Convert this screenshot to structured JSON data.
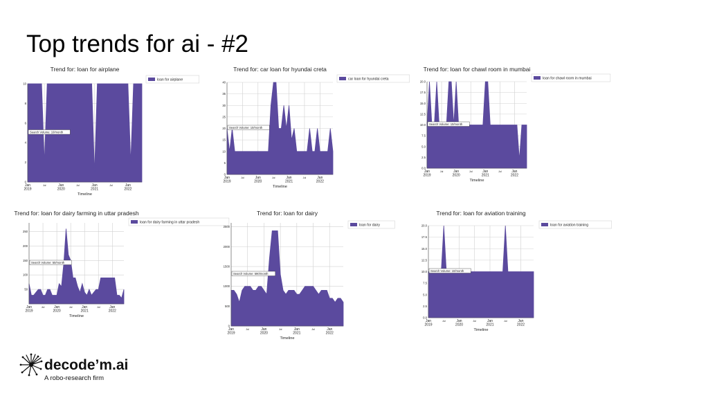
{
  "slide": {
    "title": "Top trends for ai - #2"
  },
  "logo": {
    "name": "decode’m.ai",
    "tagline": "A robo-research firm",
    "icon": "decodem-dandelion-logo-icon"
  },
  "colors": {
    "fill": "#5b4a9e",
    "grid": "#d0d0d0",
    "text": "#222222"
  },
  "chart_data": [
    {
      "type": "area",
      "title": "Trend for: loan for airplane",
      "xlabel": "Timeline",
      "ylabel": "",
      "legend": "loan for airplane",
      "annotation": "Search Volume: 10/month",
      "ylim": [
        0,
        10
      ],
      "yticks": [
        0,
        2,
        4,
        6,
        8,
        10
      ],
      "xticks": [
        {
          "t": 0,
          "label": "Jan\n2019"
        },
        {
          "t": 6,
          "label": "Jul"
        },
        {
          "t": 12,
          "label": "Jan\n2020"
        },
        {
          "t": 18,
          "label": "Jul"
        },
        {
          "t": 24,
          "label": "Jan\n2021"
        },
        {
          "t": 30,
          "label": "Jul"
        },
        {
          "t": 36,
          "label": "Jan\n2022"
        }
      ],
      "x": [
        0,
        1,
        2,
        3,
        4,
        5,
        6,
        7,
        8,
        9,
        10,
        11,
        12,
        13,
        14,
        15,
        16,
        17,
        18,
        19,
        20,
        21,
        22,
        23,
        24,
        25,
        26,
        27,
        28,
        29,
        30,
        31,
        32,
        33,
        34,
        35,
        36,
        37,
        38,
        39,
        40,
        41
      ],
      "values": [
        10,
        10,
        10,
        10,
        10,
        10,
        2,
        10,
        10,
        10,
        10,
        10,
        10,
        10,
        10,
        10,
        10,
        10,
        10,
        10,
        10,
        10,
        10,
        10,
        1,
        10,
        10,
        10,
        10,
        10,
        10,
        10,
        10,
        10,
        10,
        10,
        10,
        2,
        10,
        10,
        10,
        10
      ]
    },
    {
      "type": "area",
      "title": "Trend for: car loan for hyundai creta",
      "xlabel": "Timeline",
      "ylabel": "",
      "legend": "car loan for hyundai creta",
      "annotation": "Search Volume: 10/month",
      "ylim": [
        0,
        40
      ],
      "yticks": [
        0,
        5,
        10,
        15,
        20,
        25,
        30,
        35,
        40
      ],
      "xticks": [
        {
          "t": 0,
          "label": "Jan\n2019"
        },
        {
          "t": 6,
          "label": "Jul"
        },
        {
          "t": 12,
          "label": "Jan\n2020"
        },
        {
          "t": 18,
          "label": "Jul"
        },
        {
          "t": 24,
          "label": "Jan\n2021"
        },
        {
          "t": 30,
          "label": "Jul"
        },
        {
          "t": 36,
          "label": "Jan\n2022"
        }
      ],
      "x": [
        0,
        1,
        2,
        3,
        4,
        5,
        6,
        7,
        8,
        9,
        10,
        11,
        12,
        13,
        14,
        15,
        16,
        17,
        18,
        19,
        20,
        21,
        22,
        23,
        24,
        25,
        26,
        27,
        28,
        29,
        30,
        31,
        32,
        33,
        34,
        35,
        36,
        37,
        38,
        39,
        40,
        41
      ],
      "values": [
        20,
        10,
        20,
        10,
        10,
        10,
        10,
        10,
        10,
        10,
        10,
        10,
        10,
        10,
        10,
        10,
        10,
        30,
        40,
        40,
        20,
        20,
        30,
        20,
        30,
        15,
        20,
        10,
        10,
        10,
        10,
        10,
        20,
        10,
        10,
        20,
        10,
        10,
        10,
        10,
        20,
        10
      ]
    },
    {
      "type": "area",
      "title": "Trend for: loan for chawl room in mumbai",
      "xlabel": "Timeline",
      "ylabel": "",
      "legend": "loan for chawl room in mumbai",
      "annotation": "Search Volume: 10/month",
      "ylim": [
        0,
        20
      ],
      "yticks": [
        0.0,
        2.5,
        5.0,
        7.5,
        10.0,
        12.5,
        15.0,
        17.5,
        20.0
      ],
      "xticks": [
        {
          "t": 0,
          "label": "Jan\n2019"
        },
        {
          "t": 6,
          "label": "Jul"
        },
        {
          "t": 12,
          "label": "Jan\n2020"
        },
        {
          "t": 18,
          "label": "Jul"
        },
        {
          "t": 24,
          "label": "Jan\n2021"
        },
        {
          "t": 30,
          "label": "Jul"
        },
        {
          "t": 36,
          "label": "Jan\n2022"
        }
      ],
      "x": [
        0,
        1,
        2,
        3,
        4,
        5,
        6,
        7,
        8,
        9,
        10,
        11,
        12,
        13,
        14,
        15,
        16,
        17,
        18,
        19,
        20,
        21,
        22,
        23,
        24,
        25,
        26,
        27,
        28,
        29,
        30,
        31,
        32,
        33,
        34,
        35,
        36,
        37,
        38,
        39,
        40,
        41
      ],
      "values": [
        10,
        20,
        10,
        10,
        20,
        10,
        10,
        10,
        10,
        20,
        20,
        10,
        20,
        10,
        10,
        10,
        10,
        10,
        10,
        10,
        10,
        10,
        10,
        10,
        20,
        20,
        10,
        10,
        10,
        10,
        10,
        10,
        10,
        10,
        10,
        10,
        10,
        10,
        2,
        10,
        10,
        10
      ]
    },
    {
      "type": "area",
      "title": "Trend for: loan for dairy farming in uttar pradesh",
      "xlabel": "Timeline",
      "ylabel": "",
      "legend": "loan for dairy farming in uttar pradesh",
      "annotation": "Search Volume: 50/month",
      "ylim": [
        0,
        280
      ],
      "yticks": [
        50,
        100,
        150,
        200,
        250
      ],
      "xticks": [
        {
          "t": 0,
          "label": "Jan\n2019"
        },
        {
          "t": 6,
          "label": "Jul"
        },
        {
          "t": 12,
          "label": "Jan\n2020"
        },
        {
          "t": 18,
          "label": "Jul"
        },
        {
          "t": 24,
          "label": "Jan\n2021"
        },
        {
          "t": 30,
          "label": "Jul"
        },
        {
          "t": 36,
          "label": "Jan\n2022"
        }
      ],
      "x": [
        0,
        1,
        2,
        3,
        4,
        5,
        6,
        7,
        8,
        9,
        10,
        11,
        12,
        13,
        14,
        15,
        16,
        17,
        18,
        19,
        20,
        21,
        22,
        23,
        24,
        25,
        26,
        27,
        28,
        29,
        30,
        31,
        32,
        33,
        34,
        35,
        36,
        37,
        38,
        39,
        40,
        41
      ],
      "values": [
        70,
        30,
        30,
        40,
        50,
        50,
        30,
        30,
        50,
        50,
        30,
        30,
        30,
        70,
        60,
        140,
        260,
        170,
        150,
        90,
        90,
        60,
        40,
        70,
        40,
        30,
        50,
        30,
        40,
        50,
        50,
        90,
        90,
        90,
        90,
        90,
        90,
        90,
        30,
        30,
        20,
        50
      ]
    },
    {
      "type": "area",
      "title": "Trend for: loan for dairy",
      "xlabel": "Timeline",
      "ylabel": "",
      "legend": "loan for dairy",
      "annotation": "Search Volume: 590/month",
      "ylim": [
        0,
        2600
      ],
      "yticks": [
        0,
        500,
        1000,
        1500,
        2000,
        2500
      ],
      "xticks": [
        {
          "t": 0,
          "label": "Jan\n2019"
        },
        {
          "t": 6,
          "label": "Jul"
        },
        {
          "t": 12,
          "label": "Jan\n2020"
        },
        {
          "t": 18,
          "label": "Jul"
        },
        {
          "t": 24,
          "label": "Jan\n2021"
        },
        {
          "t": 30,
          "label": "Jul"
        },
        {
          "t": 36,
          "label": "Jan\n2022"
        }
      ],
      "x": [
        0,
        1,
        2,
        3,
        4,
        5,
        6,
        7,
        8,
        9,
        10,
        11,
        12,
        13,
        14,
        15,
        16,
        17,
        18,
        19,
        20,
        21,
        22,
        23,
        24,
        25,
        26,
        27,
        28,
        29,
        30,
        31,
        32,
        33,
        34,
        35,
        36,
        37,
        38,
        39,
        40,
        41
      ],
      "values": [
        900,
        900,
        800,
        600,
        900,
        1000,
        1000,
        1000,
        900,
        900,
        1000,
        1000,
        900,
        800,
        1700,
        2400,
        2400,
        2400,
        1300,
        900,
        800,
        900,
        900,
        900,
        800,
        800,
        900,
        1000,
        1000,
        1000,
        1000,
        900,
        800,
        900,
        900,
        900,
        700,
        700,
        600,
        700,
        700,
        600
      ]
    },
    {
      "type": "area",
      "title": "Trend for: loan for aviation training",
      "xlabel": "Timeline",
      "ylabel": "",
      "legend": "loan for aviation training",
      "annotation": "Search Volume: 10/month",
      "ylim": [
        0,
        20
      ],
      "yticks": [
        0.0,
        2.5,
        5.0,
        7.5,
        10.0,
        12.5,
        15.0,
        17.5,
        20.0
      ],
      "xticks": [
        {
          "t": 0,
          "label": "Jan\n2019"
        },
        {
          "t": 6,
          "label": "Jul"
        },
        {
          "t": 12,
          "label": "Jan\n2020"
        },
        {
          "t": 18,
          "label": "Jul"
        },
        {
          "t": 24,
          "label": "Jan\n2021"
        },
        {
          "t": 30,
          "label": "Jul"
        },
        {
          "t": 36,
          "label": "Jan\n2022"
        }
      ],
      "x": [
        0,
        1,
        2,
        3,
        4,
        5,
        6,
        7,
        8,
        9,
        10,
        11,
        12,
        13,
        14,
        15,
        16,
        17,
        18,
        19,
        20,
        21,
        22,
        23,
        24,
        25,
        26,
        27,
        28,
        29,
        30,
        31,
        32,
        33,
        34,
        35,
        36,
        37,
        38,
        39,
        40,
        41
      ],
      "values": [
        10,
        10,
        10,
        10,
        10,
        10,
        20,
        10,
        10,
        10,
        10,
        10,
        10,
        10,
        10,
        10,
        10,
        10,
        10,
        10,
        10,
        10,
        10,
        10,
        10,
        10,
        10,
        10,
        10,
        10,
        20,
        10,
        10,
        10,
        10,
        10,
        10,
        10,
        10,
        10,
        10,
        10
      ]
    }
  ]
}
